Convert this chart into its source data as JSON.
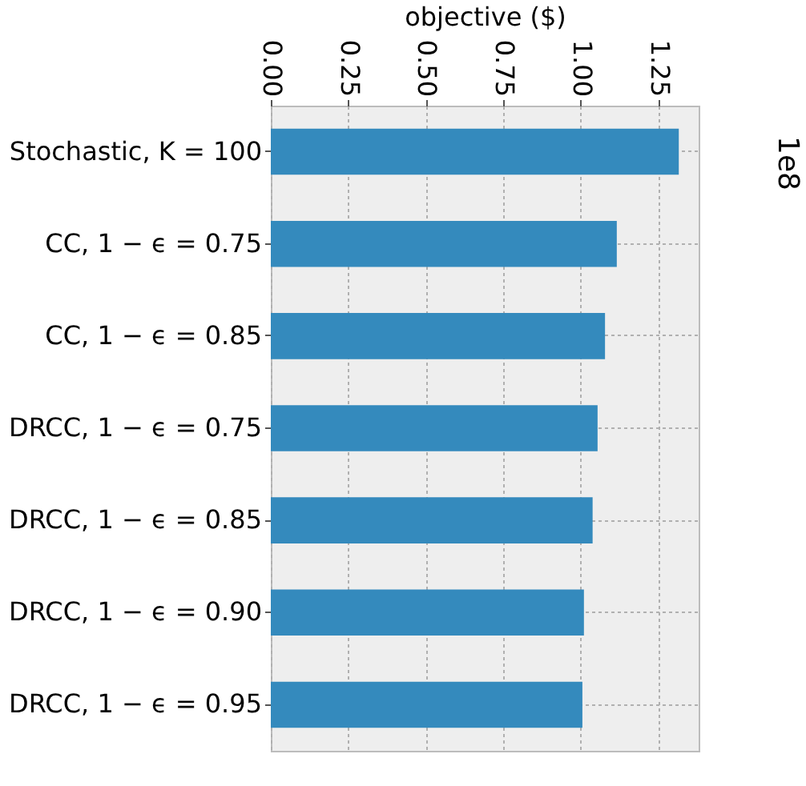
{
  "chart_data": {
    "type": "bar",
    "orientation": "horizontal",
    "xlabel": "objective ($)",
    "categories": [
      "Stochastic, K = 100",
      "CC, 1 − ϵ = 0.75",
      "CC, 1 − ϵ = 0.85",
      "DRCC, 1 − ϵ = 0.75",
      "DRCC, 1 − ϵ = 0.85",
      "DRCC, 1 − ϵ = 0.90",
      "DRCC, 1 − ϵ = 0.95"
    ],
    "values": [
      1.316,
      1.116,
      1.078,
      1.054,
      1.038,
      1.01,
      1.005
    ],
    "color": "#348abd",
    "xlim": [
      0,
      1.38
    ],
    "xticks": [
      {
        "value": 0,
        "label": "0.00"
      },
      {
        "value": 0.25,
        "label": "0.25"
      },
      {
        "value": 0.5,
        "label": "0.50"
      },
      {
        "value": 0.75,
        "label": "0.75"
      },
      {
        "value": 1,
        "label": "1.00"
      },
      {
        "value": 1.25,
        "label": "1.25"
      }
    ],
    "annotations": [
      "1e8"
    ],
    "grid": true
  }
}
